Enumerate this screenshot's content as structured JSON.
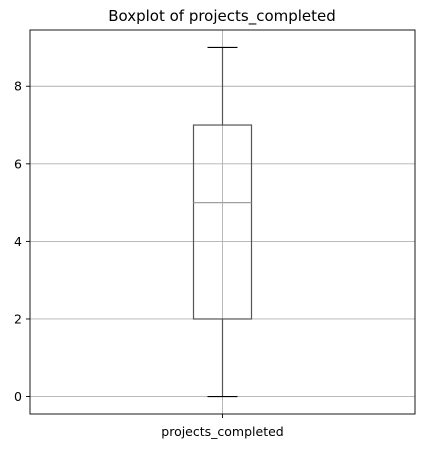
{
  "chart_data": {
    "type": "boxplot",
    "title": "Boxplot of projects_completed",
    "xlabel": "",
    "ylabel": "",
    "categories": [
      "projects_completed"
    ],
    "boxes": [
      {
        "category": "projects_completed",
        "min": 0,
        "q1": 2,
        "median": 5,
        "q3": 7,
        "max": 9
      }
    ],
    "ylim": [
      -0.45,
      9.45
    ],
    "yticks": [
      0,
      2,
      4,
      6,
      8
    ],
    "ytick_labels": [
      "0",
      "2",
      "4",
      "6",
      "8"
    ],
    "grid": true,
    "colors": {
      "box": "#555555",
      "median": "#a0a0a0",
      "grid": "#b0b0b0",
      "axes": "#000000"
    }
  }
}
